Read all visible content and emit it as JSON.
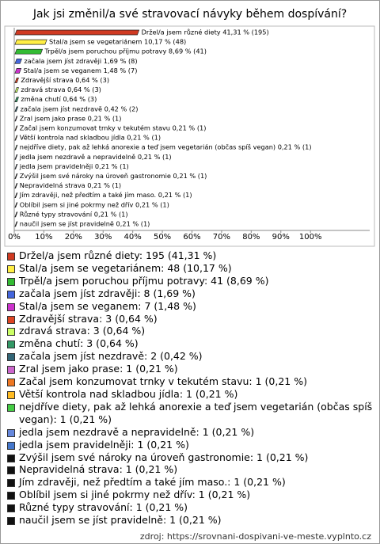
{
  "chart_data": {
    "type": "bar",
    "orientation": "horizontal",
    "title": "Jak jsi změnil/a své stravovací návyky během dospívání?",
    "categories": [
      "Držel/a jsem různé diety 41,31 % (195)",
      "Stal/a jsem se vegetariánem 10,17 % (48)",
      "Trpěl/a jsem poruchou příjmu potravy 8,69 % (41)",
      "začala jsem jíst zdravěji 1,69 % (8)",
      "Stal/a jsem se veganem 1,48 % (7)",
      "Zdravější strava 0,64 % (3)",
      "zdravá strava 0,64 % (3)",
      "změna chutí 0,64 % (3)",
      "začala jsem jíst nezdravě 0,42 % (2)",
      "Zral jsem jako prase 0,21 % (1)",
      "Začal jsem konzumovat trnky v tekutém stavu 0,21 % (1)",
      "Větší kontrola nad skladbou jídla 0,21 % (1)",
      "nejdříve diety, pak až lehká anorexie a teď jsem vegetarián (občas spíš vegan) 0,21 % (1)",
      "jedla jsem nezdravě a nepravidelně 0,21 % (1)",
      "jedla jsem pravidelněji 0,21 % (1)",
      "Zvýšil jsem své nároky na úroveň gastronomie 0,21 % (1)",
      "Nepravidelná strava 0,21 % (1)",
      "Jím zdravěji, než předtím a také jím maso. 0,21 % (1)",
      "Oblíbil jsem si jiné pokrmy než dřív 0,21 % (1)",
      "Různé typy stravování 0,21 % (1)",
      "naučil jsem se jíst pravidelně 0,21 % (1)"
    ],
    "values": [
      41.31,
      10.17,
      8.69,
      1.69,
      1.48,
      0.64,
      0.64,
      0.64,
      0.42,
      0.21,
      0.21,
      0.21,
      0.21,
      0.21,
      0.21,
      0.21,
      0.21,
      0.21,
      0.21,
      0.21,
      0.21
    ],
    "legend_labels": [
      "Držel/a jsem různé diety: 195 (41,31 %)",
      "Stal/a jsem se vegetariánem: 48 (10,17 %)",
      "Trpěl/a jsem poruchou příjmu potravy: 41 (8,69 %)",
      "začala jsem jíst zdravěji: 8 (1,69 %)",
      "Stal/a jsem se veganem: 7 (1,48 %)",
      "Zdravější strava: 3 (0,64 %)",
      "zdravá strava: 3 (0,64 %)",
      "změna chutí: 3 (0,64 %)",
      "začala jsem jíst nezdravě: 2 (0,42 %)",
      "Zral jsem jako prase: 1 (0,21 %)",
      "Začal jsem konzumovat trnky v tekutém stavu: 1 (0,21 %)",
      "Větší kontrola nad skladbou jídla: 1 (0,21 %)",
      "nejdříve diety, pak až lehká anorexie a teď jsem vegetarián (občas spíš vegan): 1 (0,21 %)",
      "jedla jsem nezdravě a nepravidelně: 1 (0,21 %)",
      "jedla jsem pravidelněji: 1 (0,21 %)",
      "Zvýšil jsem své nároky na úroveň gastronomie: 1 (0,21 %)",
      "Nepravidelná strava: 1 (0,21 %)",
      "Jím zdravěji, než předtím a také jím maso.: 1 (0,21 %)",
      "Oblíbil jsem si jiné pokrmy než dřív: 1 (0,21 %)",
      "Různé typy stravování: 1 (0,21 %)",
      "naučil jsem se jíst pravidelně: 1 (0,21 %)"
    ],
    "colors": [
      "#d03a22",
      "#ffee44",
      "#33bb33",
      "#4466dd",
      "#cc33cc",
      "#dd4422",
      "#ccff66",
      "#339966",
      "#336677",
      "#cc66cc",
      "#ee7722",
      "#ffbb22",
      "#44cc44",
      "#6688dd",
      "#4477cc",
      "#111111",
      "#111111",
      "#111111",
      "#111111",
      "#111111",
      "#111111"
    ],
    "xlim": [
      0,
      120
    ],
    "xticks": [
      {
        "value": 0,
        "label": "0%"
      },
      {
        "value": 10,
        "label": "10%"
      },
      {
        "value": 20,
        "label": "20%"
      },
      {
        "value": 30,
        "label": "30%"
      },
      {
        "value": 40,
        "label": "40%"
      },
      {
        "value": 50,
        "label": "50%"
      },
      {
        "value": 60,
        "label": "60%"
      },
      {
        "value": 70,
        "label": "70%"
      },
      {
        "value": 80,
        "label": "80%"
      },
      {
        "value": 90,
        "label": "90%"
      },
      {
        "value": 100,
        "label": "100%"
      }
    ],
    "source": "zdroj: https://srovnani-dospivani-ve-meste.vyplnto.cz"
  }
}
